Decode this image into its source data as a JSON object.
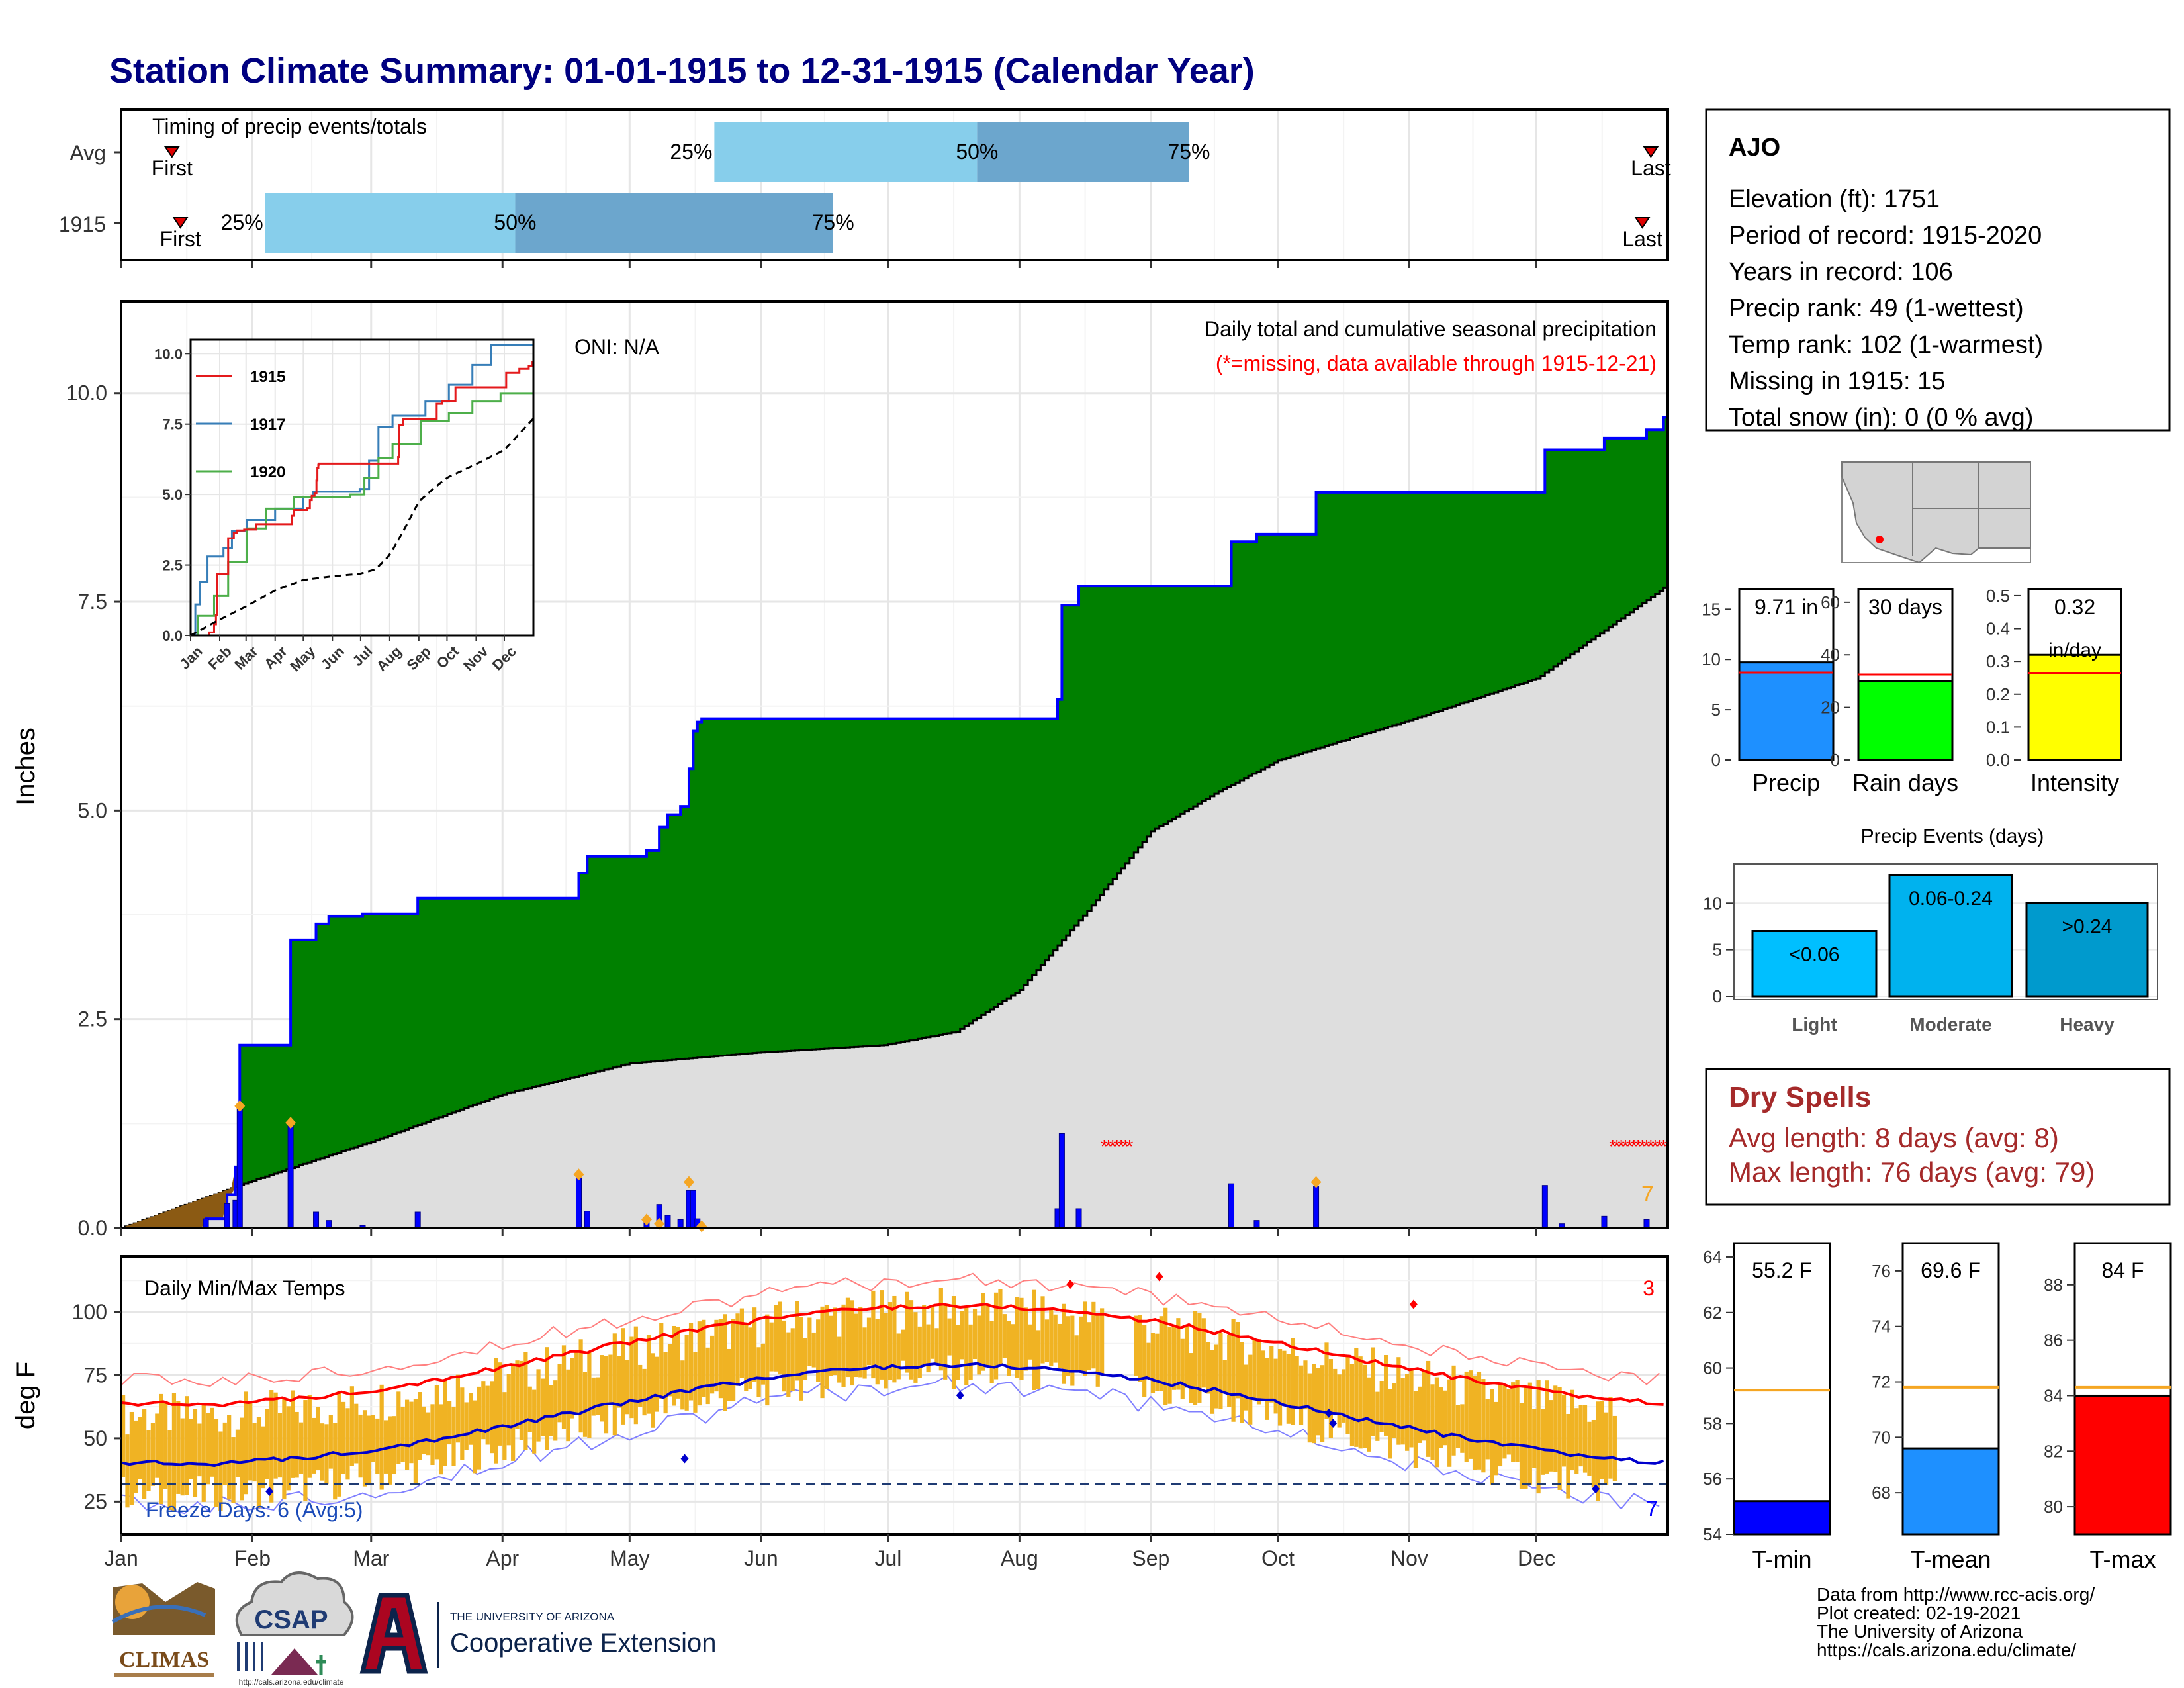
{
  "title": "Station Climate Summary: 01-01-1915 to 12-31-1915 (Calendar Year)",
  "months": [
    "Jan",
    "Feb",
    "Mar",
    "Apr",
    "May",
    "Jun",
    "Jul",
    "Aug",
    "Sep",
    "Oct",
    "Nov",
    "Dec"
  ],
  "timing": {
    "title": "Timing of precip events/totals",
    "rows": [
      {
        "label": "Avg",
        "first_doy": 12,
        "p25_doy": 140,
        "p50_doy": 202,
        "p75_doy": 252,
        "last_doy": 361
      },
      {
        "label": "1915",
        "first_doy": 14,
        "p25_doy": 34,
        "p50_doy": 93,
        "p75_doy": 168,
        "last_doy": 359
      }
    ],
    "first_label": "First",
    "last_label": "Last",
    "p25_label": "25%",
    "p50_label": "50%",
    "p75_label": "75%"
  },
  "precip": {
    "ylabel": "Inches",
    "title": "Daily total and cumulative seasonal precipitation",
    "missing_note": "(*=missing, data available through 1915-12-21)",
    "oni": "ONI: N/A",
    "count_label": "7",
    "yticks": [
      "0.0",
      "2.5",
      "5.0",
      "7.5",
      "10.0"
    ]
  },
  "inset": {
    "yticks": [
      "0.0",
      "2.5",
      "5.0",
      "7.5",
      "10.0"
    ],
    "xticks": [
      "Jan",
      "Feb",
      "Mar",
      "Apr",
      "May",
      "Jun",
      "Jul",
      "Aug",
      "Sep",
      "Oct",
      "Nov",
      "Dec"
    ],
    "legend": [
      {
        "name": "1915",
        "color": "#e41a1c"
      },
      {
        "name": "1917",
        "color": "#377eb8"
      },
      {
        "name": "1920",
        "color": "#4daf4a"
      }
    ]
  },
  "station": {
    "name": "AJO",
    "lines": [
      "Elevation (ft): 1751",
      "Period of record: 1915-2020",
      "Years in record: 106",
      "Precip rank: 49 (1-wettest)",
      "Temp rank: 102 (1-warmest)",
      "Missing in 1915: 15",
      "Total snow (in): 0 (0 % avg)"
    ]
  },
  "mini_bars": [
    {
      "label": "Precip",
      "value_label": "9.71 in",
      "value": 9.71,
      "avg": 8.7,
      "ymax": 17,
      "yticks": [
        "0",
        "5",
        "10",
        "15"
      ],
      "color": "#1e90ff"
    },
    {
      "label": "Rain days",
      "value_label": "30 days",
      "value": 30,
      "avg": 32.5,
      "ymax": 65,
      "yticks": [
        "0",
        "20",
        "40",
        "60"
      ],
      "color": "#00ff00"
    },
    {
      "label": "Intensity",
      "value_label": "0.32",
      "value_label2": "in/day",
      "value": 0.32,
      "avg": 0.265,
      "ymax": 0.52,
      "yticks": [
        "0.0",
        "0.1",
        "0.2",
        "0.3",
        "0.4",
        "0.5"
      ],
      "color": "#ffff00"
    }
  ],
  "events": {
    "title": "Precip Events (days)",
    "yticks": [
      "0",
      "5",
      "10"
    ],
    "bars": [
      {
        "label": "Light",
        "range": "<0.06",
        "value": 7,
        "color": "#00bfff"
      },
      {
        "label": "Moderate",
        "range": "0.06-0.24",
        "value": 13,
        "color": "#00b2ee"
      },
      {
        "label": "Heavy",
        "range": ">0.24",
        "value": 10,
        "color": "#009acd"
      }
    ]
  },
  "dry_spells": {
    "title": "Dry Spells",
    "avg": "Avg length: 8 days (avg: 8)",
    "max": "Max length: 76 days (avg: 79)"
  },
  "temps": {
    "ylabel": "deg F",
    "title": "Daily Min/Max Temps",
    "freeze": "Freeze Days: 6 (Avg:5)",
    "count_top": "3",
    "count_bottom": "7",
    "yticks": [
      "25",
      "50",
      "75",
      "100"
    ]
  },
  "temp_bars": [
    {
      "label": "T-min",
      "value_label": "55.2 F",
      "value": 55.2,
      "avg": 59.2,
      "ymin": 54,
      "ymax": 64.5,
      "yticks": [
        "54",
        "56",
        "58",
        "60",
        "62",
        "64"
      ],
      "color": "#0000ff"
    },
    {
      "label": "T-mean",
      "value_label": "69.6 F",
      "value": 69.6,
      "avg": 71.8,
      "ymin": 66.5,
      "ymax": 77,
      "yticks": [
        "68",
        "70",
        "72",
        "74",
        "76"
      ],
      "color": "#1e90ff"
    },
    {
      "label": "T-max",
      "value_label": "84 F",
      "value": 84,
      "avg": 84.3,
      "ymin": 79,
      "ymax": 89.5,
      "yticks": [
        "80",
        "82",
        "84",
        "86",
        "88"
      ],
      "color": "#ff0000"
    }
  ],
  "footer": {
    "lines": [
      "Data from http://www.rcc-acis.org/",
      "Plot created: 02-19-2021",
      "The University of Arizona",
      "https://cals.arizona.edu/climate/"
    ],
    "climas": "CLIMAS",
    "csap": "CSAP",
    "csap_url": "http://cals.arizona.edu/climate",
    "ua_small": "THE UNIVERSITY OF ARIZONA",
    "ua_big": "Cooperative Extension"
  }
}
